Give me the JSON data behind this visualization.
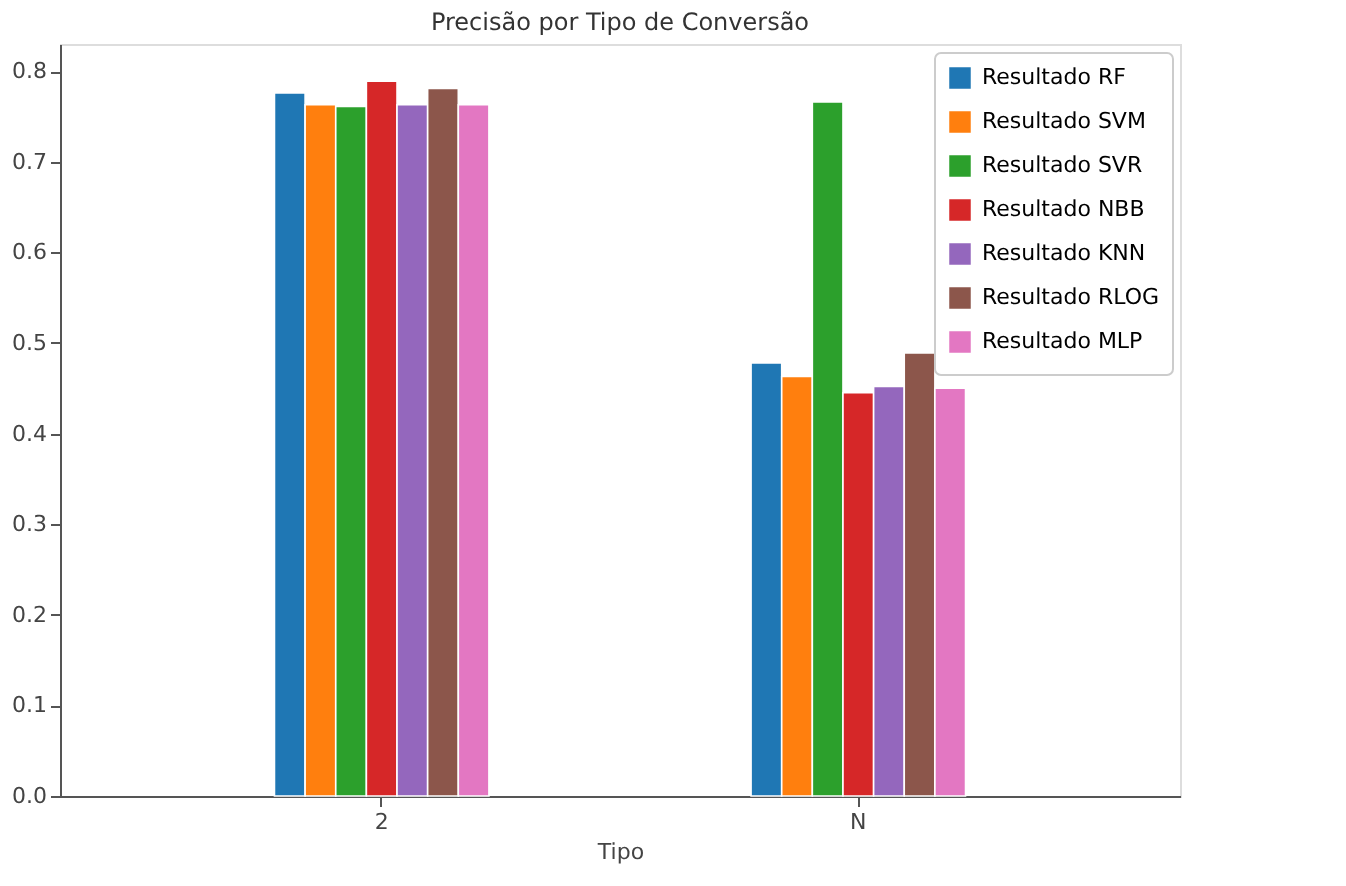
{
  "chart_data": {
    "type": "bar",
    "title": "Precisão por Tipo de Conversão",
    "xlabel": "Tipo",
    "categories": [
      "2",
      "N"
    ],
    "series": [
      {
        "name": "Resultado RF",
        "color": "#1f77b4",
        "values": [
          0.776,
          0.478
        ]
      },
      {
        "name": "Resultado SVM",
        "color": "#ff7f0e",
        "values": [
          0.763,
          0.463
        ]
      },
      {
        "name": "Resultado SVR",
        "color": "#2ca02c",
        "values": [
          0.761,
          0.766
        ]
      },
      {
        "name": "Resultado NBB",
        "color": "#d62728",
        "values": [
          0.789,
          0.445
        ]
      },
      {
        "name": "Resultado KNN",
        "color": "#9467bd",
        "values": [
          0.763,
          0.452
        ]
      },
      {
        "name": "Resultado RLOG",
        "color": "#8c564b",
        "values": [
          0.781,
          0.489
        ]
      },
      {
        "name": "Resultado MLP",
        "color": "#e377c2",
        "values": [
          0.763,
          0.45
        ]
      }
    ],
    "ylim": [
      0,
      0.83
    ],
    "yticks": [
      {
        "value": 0,
        "label": "0.0"
      },
      0.1,
      0.2,
      0.3,
      0.4,
      0.5,
      0.6,
      0.7,
      0.8
    ],
    "grid": false,
    "legend": "top right"
  }
}
